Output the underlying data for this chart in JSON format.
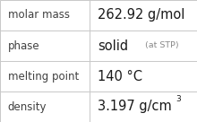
{
  "rows": [
    {
      "label": "molar mass",
      "value_type": "simple",
      "value": "262.92 g/mol"
    },
    {
      "label": "phase",
      "value_type": "phase",
      "value": "solid",
      "suffix": "(at STP)"
    },
    {
      "label": "melting point",
      "value_type": "simple",
      "value": "140 °C"
    },
    {
      "label": "density",
      "value_type": "super",
      "value": "3.197 g/cm",
      "super": "3"
    }
  ],
  "bg_color": "#ffffff",
  "cell_bg": "#f9f9f9",
  "border_color": "#c8c8c8",
  "label_color": "#404040",
  "value_color": "#1a1a1a",
  "suffix_color": "#888888",
  "label_fontsize": 8.5,
  "value_fontsize": 10.5,
  "small_fontsize": 6.8,
  "super_fontsize": 6.5,
  "col_split": 0.455
}
